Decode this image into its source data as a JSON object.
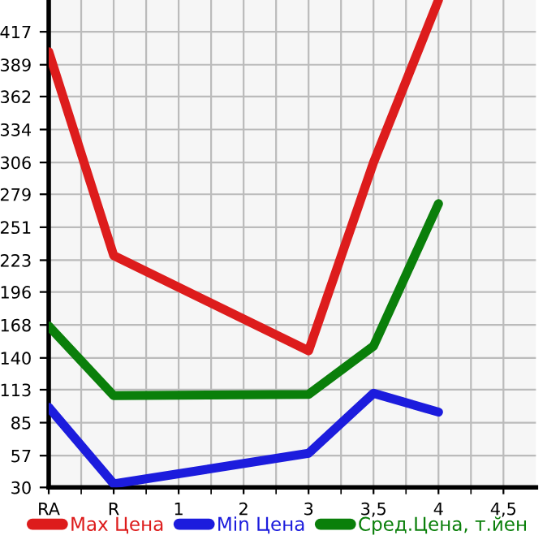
{
  "chart_data": {
    "type": "line",
    "categories": [
      "RA",
      "R",
      "1",
      "2",
      "3",
      "3,5",
      "4",
      "4,5"
    ],
    "series": [
      {
        "name": "Max Цена",
        "color": "#dd1c1c",
        "values": [
          400,
          227,
          null,
          null,
          146,
          306,
          444,
          null
        ]
      },
      {
        "name": "Min Цена",
        "color": "#1c1cdd",
        "values": [
          98,
          33,
          null,
          null,
          59,
          110,
          94,
          null
        ]
      },
      {
        "name": "Сред.Цена, т.йен",
        "color": "#0a7f0a",
        "values": [
          167,
          108,
          null,
          null,
          109,
          150,
          271,
          null
        ]
      }
    ],
    "ylim": [
      30,
      444
    ],
    "yticks": [
      30,
      57,
      85,
      113,
      140,
      168,
      196,
      223,
      251,
      279,
      306,
      334,
      362,
      389,
      417
    ],
    "grid": true,
    "legend": "bottom",
    "marker": "none",
    "line_style": "solid"
  }
}
